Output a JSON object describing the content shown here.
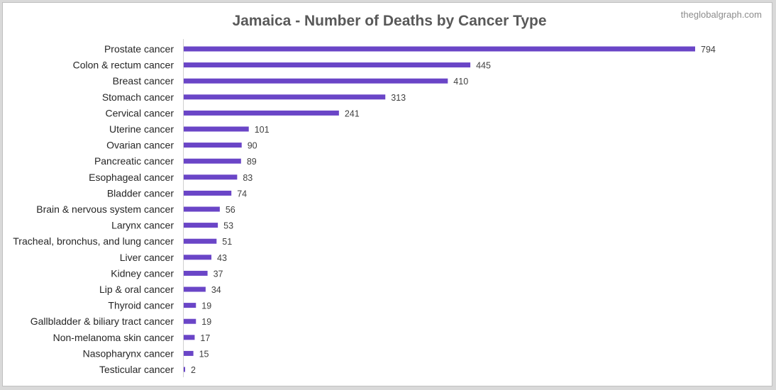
{
  "page": {
    "title": "Jamaica - Number of Deaths by Cancer Type",
    "watermark": "theglobalgraph.com"
  },
  "colors": {
    "bar": "#6a45c7",
    "axis": "#d0d0d0",
    "background": "#ffffff"
  },
  "chart_data": {
    "type": "bar",
    "orientation": "horizontal",
    "title": "Jamaica - Number of Deaths by Cancer Type",
    "xlabel": "",
    "ylabel": "",
    "grid": false,
    "legend": "none",
    "xlim": [
      0,
      794
    ],
    "categories": [
      "Prostate cancer",
      "Colon & rectum cancer",
      "Breast cancer",
      "Stomach cancer",
      "Cervical cancer",
      "Uterine cancer",
      "Ovarian cancer",
      "Pancreatic cancer",
      "Esophageal cancer",
      "Bladder cancer",
      "Brain & nervous system cancer",
      "Larynx cancer",
      "Tracheal, bronchus, and lung cancer",
      "Liver cancer",
      "Kidney cancer",
      "Lip & oral cancer",
      "Thyroid cancer",
      "Gallbladder & biliary tract cancer",
      "Non-melanoma skin cancer",
      "Nasopharynx cancer",
      "Testicular cancer"
    ],
    "values": [
      794,
      445,
      410,
      313,
      241,
      101,
      90,
      89,
      83,
      74,
      56,
      53,
      51,
      43,
      37,
      34,
      19,
      19,
      17,
      15,
      2
    ]
  }
}
